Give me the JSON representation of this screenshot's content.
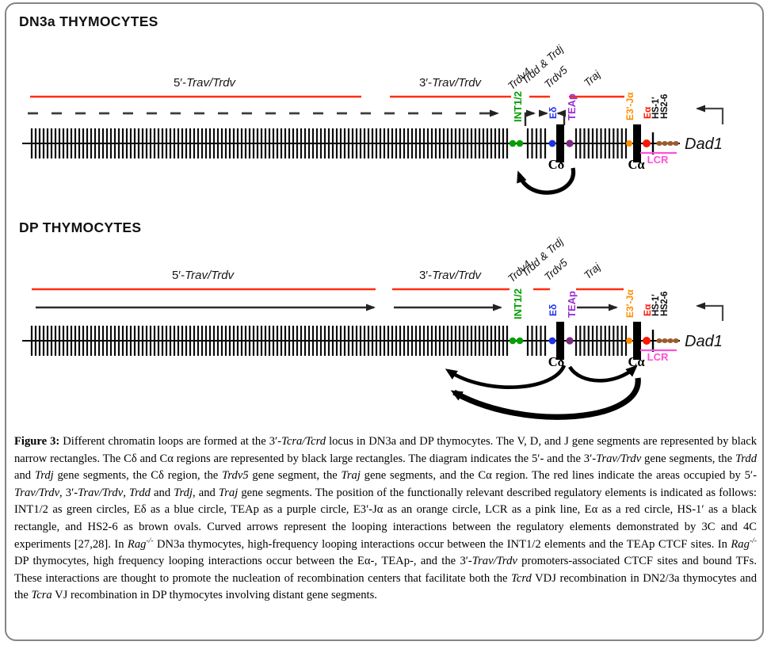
{
  "figure": {
    "colors": {
      "red_line": "#ff2d12",
      "green": "#00a000",
      "blue": "#1f32e6",
      "purple": "#7c2c85",
      "teap_label": "#9a30d0",
      "orange": "#ff8c00",
      "red": "#ff1500",
      "pink": "#ff4fd8",
      "brown": "#9a5b2d"
    },
    "sections": {
      "dn3a": {
        "title": "DN3a THYMOCYTES",
        "labels": {
          "five_prefix": "5′-",
          "five_name": "Trav/Trdv",
          "three_prefix": "3′-",
          "three_name": "Trav/Trdv",
          "trdv4": "Trdv4",
          "trdd_trdj": "Trdd & Trdj",
          "trdv5": "Trdv5",
          "traj": "Traj",
          "int12": "INT1/2",
          "e_delta": "Eδ",
          "teap": "TEAp",
          "e3_ja": "E3′-Jα",
          "e_alpha": "Eα",
          "hs1": "HS-1′",
          "hs26": "HS2-6",
          "c_delta": "Cδ",
          "c_alpha": "Cα",
          "lcr": "LCR",
          "dad1": "Dad1"
        }
      },
      "dp": {
        "title": "DP THYMOCYTES",
        "labels": {
          "five_prefix": "5′-",
          "five_name": "Trav/Trdv",
          "three_prefix": "3′-",
          "three_name": "Trav/Trdv",
          "trdv4": "Trdv4",
          "trdd_trdj": "Trdd & Trdj",
          "trdv5": "Trdv5",
          "traj": "Traj",
          "int12": "INT1/2",
          "e_delta": "Eδ",
          "teap": "TEAp",
          "e3_ja": "E3′-Jα",
          "e_alpha": "Eα",
          "hs1": "HS-1′",
          "hs26": "HS2-6",
          "c_delta": "Cδ",
          "c_alpha": "Cα",
          "lcr": "LCR",
          "dad1": "Dad1"
        }
      }
    },
    "caption": [
      {
        "t": "Figure 3: ",
        "b": true
      },
      {
        "t": "Different chromatin loops are formed at the 3′-"
      },
      {
        "t": "Tcra/Tcrd",
        "i": true
      },
      {
        "t": " locus in DN3a and DP thymocytes. The V, D, and J gene segments are represented by black narrow rectangles. The Cδ and Cα regions are represented by black large rectangles. The diagram indicates the 5′- and the 3′-"
      },
      {
        "t": "Trav/Trdv",
        "i": true
      },
      {
        "t": " gene segments, the "
      },
      {
        "t": "Trdd",
        "i": true
      },
      {
        "t": " and "
      },
      {
        "t": "Trdj",
        "i": true
      },
      {
        "t": " gene segments, the Cδ region, the "
      },
      {
        "t": "Trdv5",
        "i": true
      },
      {
        "t": " gene segment, the "
      },
      {
        "t": "Traj",
        "i": true
      },
      {
        "t": " gene segments, and the Cα region. The red lines indicate the areas occupied by 5′-"
      },
      {
        "t": "Trav/Trdv",
        "i": true
      },
      {
        "t": ", 3′-"
      },
      {
        "t": "Trav/Trdv",
        "i": true
      },
      {
        "t": ", "
      },
      {
        "t": "Trdd",
        "i": true
      },
      {
        "t": " and "
      },
      {
        "t": "Trdj",
        "i": true
      },
      {
        "t": ", and "
      },
      {
        "t": "Traj",
        "i": true
      },
      {
        "t": " gene segments. The position of the functionally relevant described regulatory elements is indicated as follows: INT1/2 as green circles, Eδ as a blue circle, TEAp as a purple circle, E3′-Jα as an orange circle, LCR as a pink line, Eα as a red circle, HS-1′ as a black rectangle, and HS2-6 as brown ovals. Curved arrows represent the looping interactions between the regulatory elements demonstrated by 3C and 4C experiments [27,28]. In "
      },
      {
        "t": "Rag",
        "i": true
      },
      {
        "t": "-/-",
        "i": true,
        "sup": true
      },
      {
        "t": " DN3a thymocytes, high-frequency looping interactions occur between the INT1/2 elements and the TEAp CTCF sites. In "
      },
      {
        "t": "Rag",
        "i": true
      },
      {
        "t": "-/-",
        "i": true,
        "sup": true
      },
      {
        "t": " DP thymocytes, high frequency looping interactions occur between the Eα-, TEAp-, and the 3′-"
      },
      {
        "t": "Trav/Trdv",
        "i": true
      },
      {
        "t": " promoters-associated CTCF sites and bound TFs. These interactions are thought to promote the nucleation of recombination centers that facilitate both the "
      },
      {
        "t": "Tcrd",
        "i": true
      },
      {
        "t": " VDJ recombination in DN2/3a thymocytes and the "
      },
      {
        "t": "Tcra",
        "i": true
      },
      {
        "t": " VJ recombination in DP thymocytes involving distant gene segments."
      }
    ]
  }
}
